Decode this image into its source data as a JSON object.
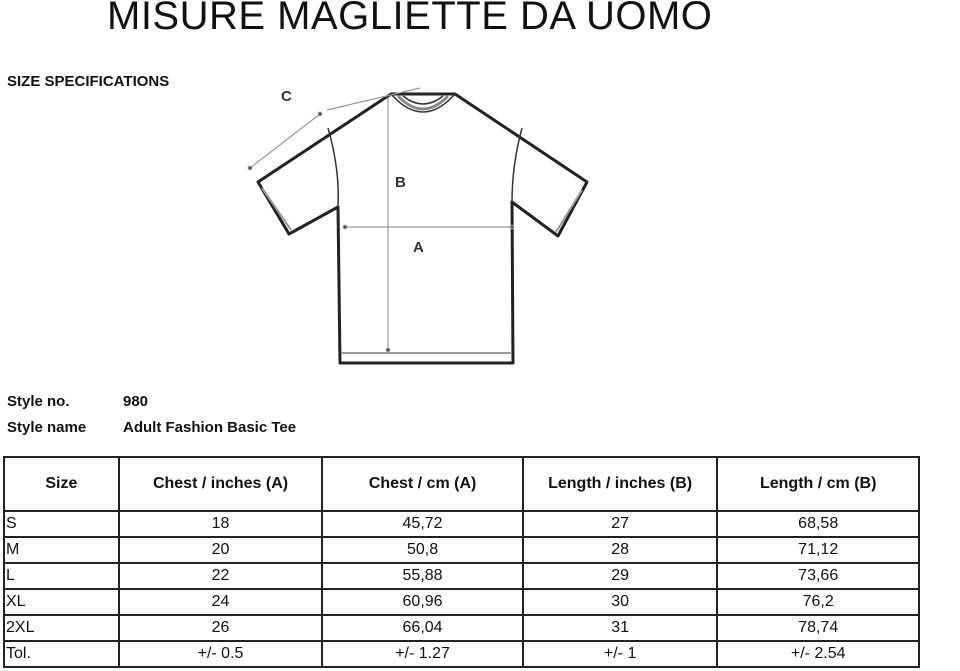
{
  "title": "MISURE MAGLIETTE DA UOMO",
  "subtitle": "SIZE SPECIFICATIONS",
  "diagram": {
    "labels": {
      "a": "A",
      "b": "B",
      "c": "C"
    }
  },
  "style_info": [
    {
      "label": "Style no.",
      "value": "980"
    },
    {
      "label": "Style name",
      "value": "Adult Fashion Basic Tee"
    }
  ],
  "table": {
    "headers": [
      "Size",
      "Chest / inches (A)",
      "Chest / cm (A)",
      "Length / inches (B)",
      "Length / cm (B)"
    ],
    "rows": [
      [
        "S",
        "18",
        "45,72",
        "27",
        "68,58"
      ],
      [
        "M",
        "20",
        "50,8",
        "28",
        "71,12"
      ],
      [
        "L",
        "22",
        "55,88",
        "29",
        "73,66"
      ],
      [
        "XL",
        "24",
        "60,96",
        "30",
        "76,2"
      ],
      [
        "2XL",
        "26",
        "66,04",
        "31",
        "78,74"
      ],
      [
        "Tol.",
        "+/- 0.5",
        "+/- 1.27",
        "+/- 1",
        "+/- 2.54"
      ]
    ]
  }
}
